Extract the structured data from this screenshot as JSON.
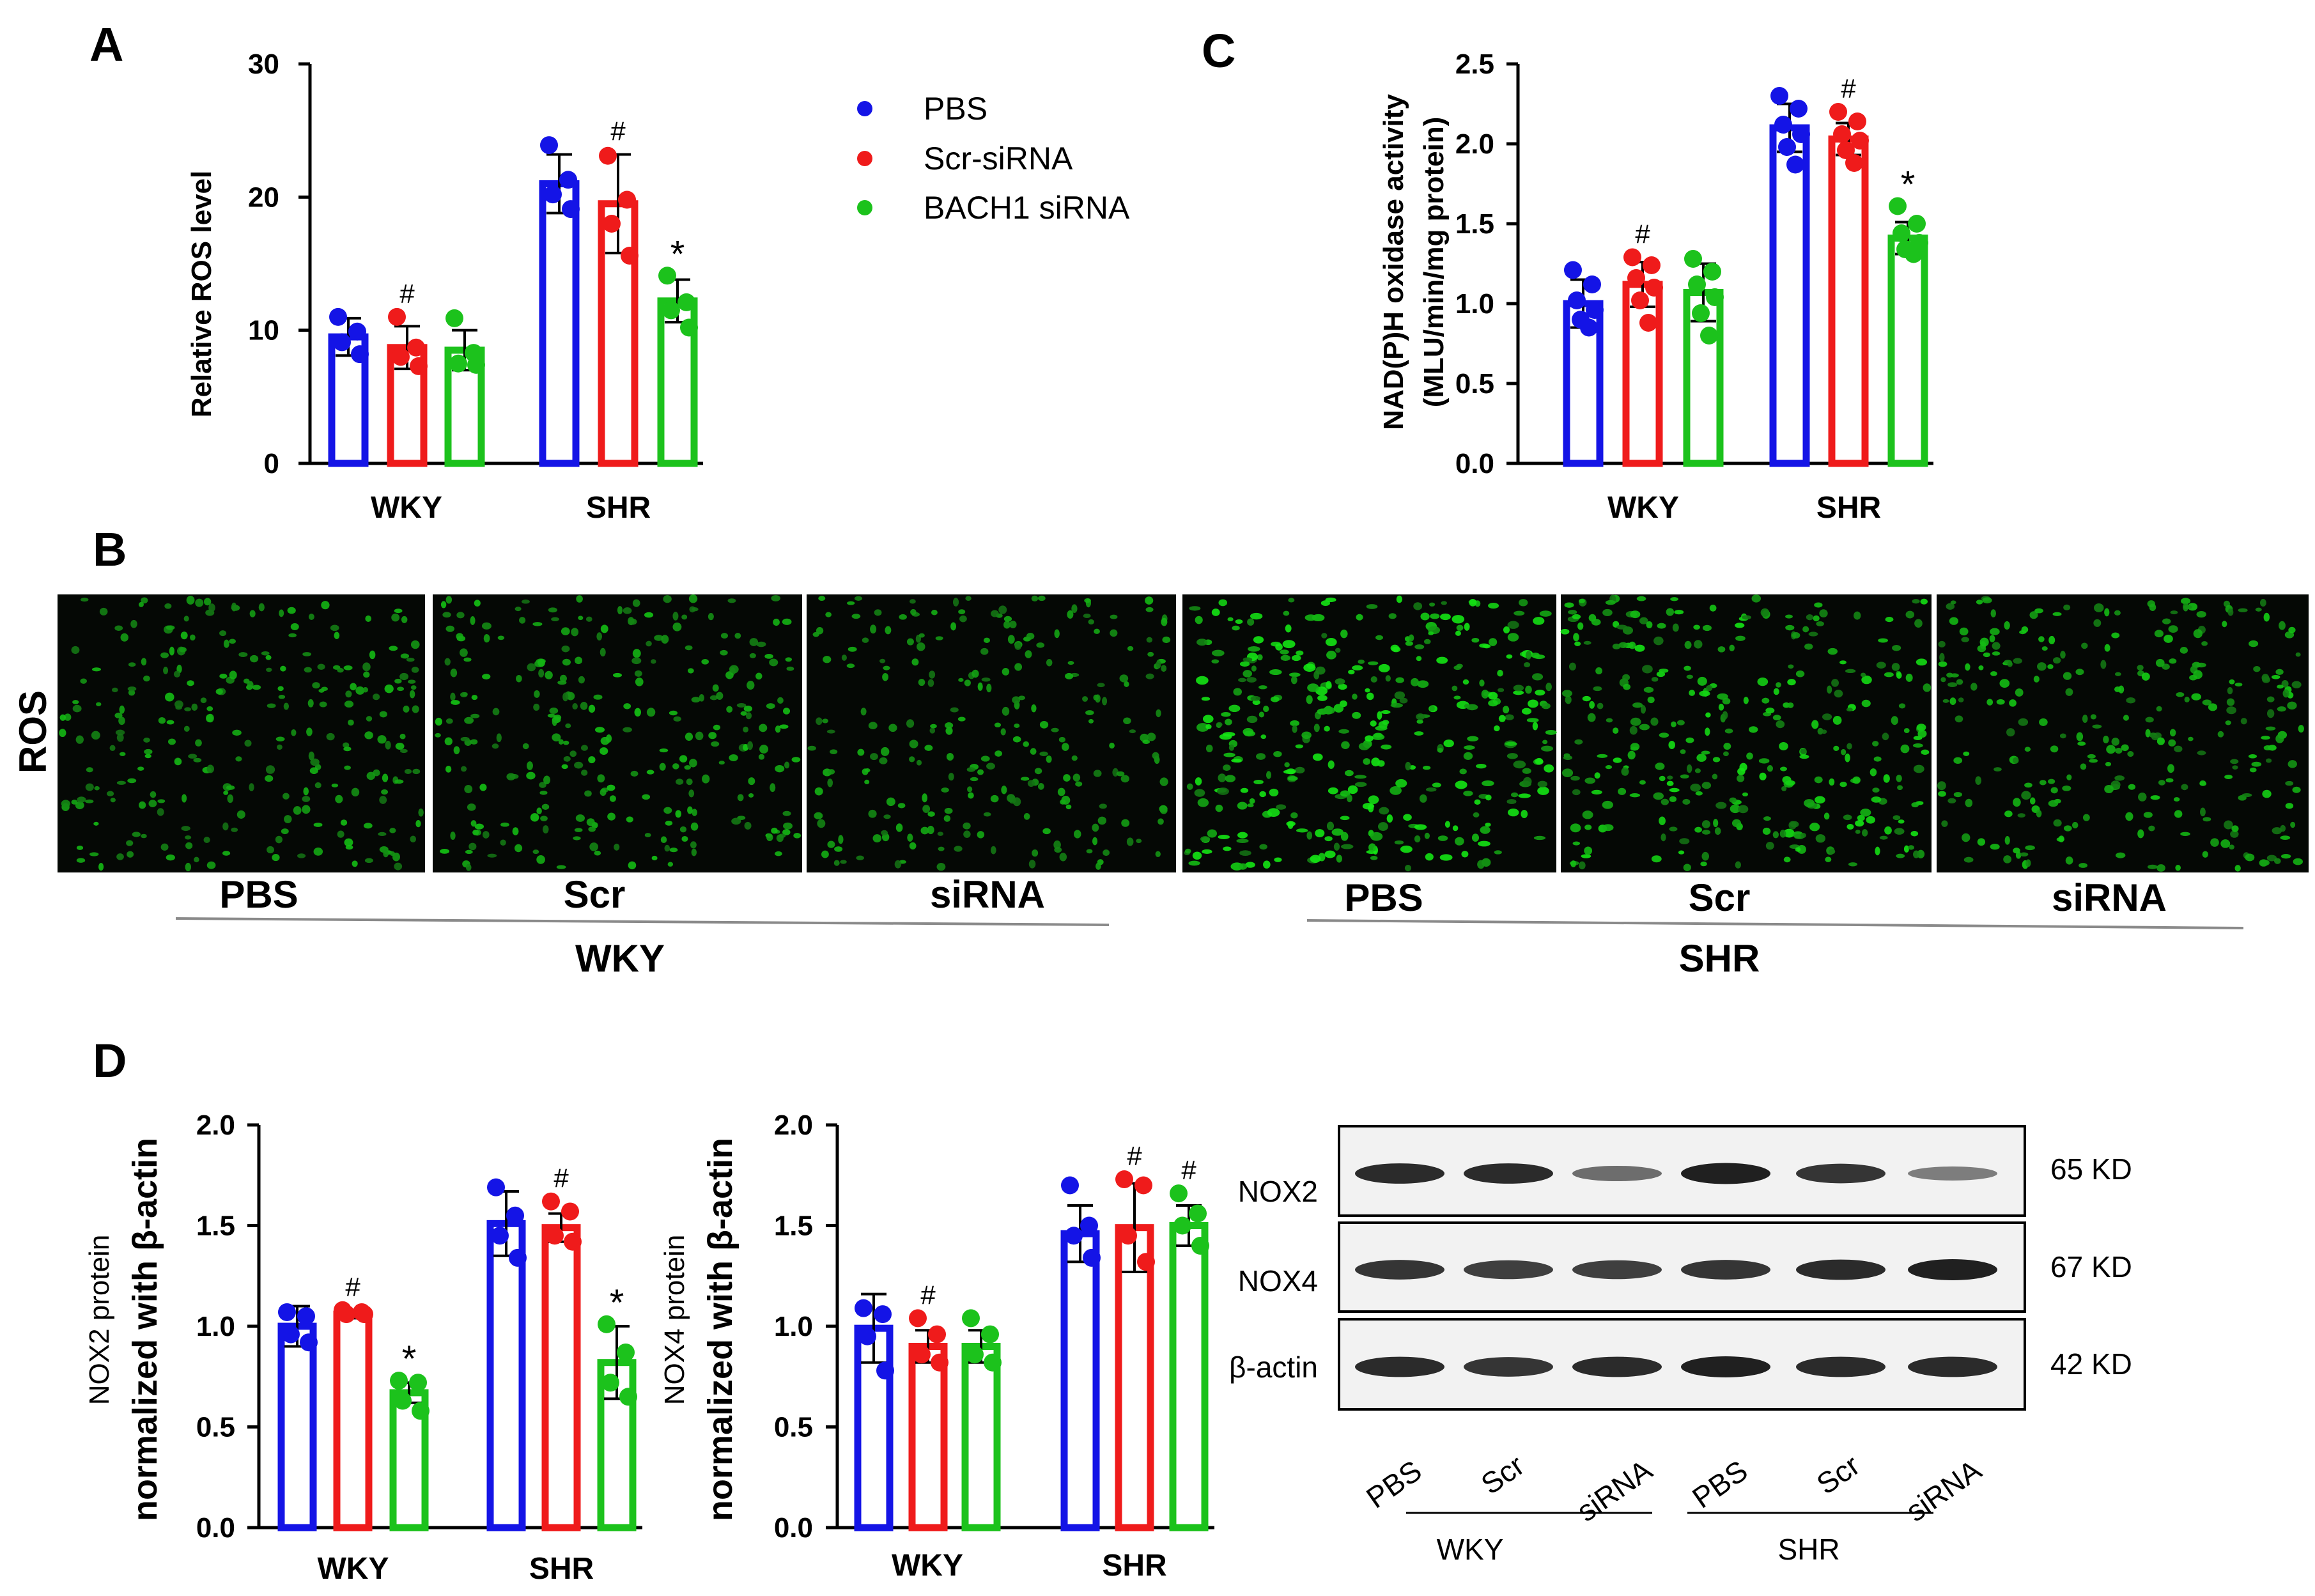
{
  "colors": {
    "PBS": "#1414e6",
    "Scr-siRNA": "#ef1b1b",
    "BACH1 siRNA": "#1cc21c"
  },
  "legend": [
    "PBS",
    "Scr-siRNA",
    "BACH1 siRNA"
  ],
  "panels": {
    "A": "A",
    "B": "B",
    "C": "C",
    "D": "D"
  },
  "chart_data": [
    {
      "id": "A",
      "type": "bar",
      "ylabel": "Relative ROS level",
      "ylim": [
        0,
        30
      ],
      "yticks": [
        "0",
        "10",
        "20",
        "30"
      ],
      "categories": [
        "WKY",
        "SHR"
      ],
      "series": [
        {
          "name": "PBS",
          "values": [
            9.5,
            21.0
          ],
          "errors": [
            1.4,
            2.2
          ],
          "points": [
            [
              11.0,
              9.9,
              9.1,
              8.2
            ],
            [
              23.9,
              21.3,
              20.2,
              19.1
            ]
          ]
        },
        {
          "name": "Scr-siRNA",
          "values": [
            8.7,
            19.5
          ],
          "errors": [
            1.6,
            3.7
          ],
          "points": [
            [
              11.0,
              8.7,
              8.0,
              7.3
            ],
            [
              23.1,
              19.8,
              18.0,
              15.6
            ]
          ]
        },
        {
          "name": "BACH1 siRNA",
          "values": [
            8.5,
            12.2
          ],
          "errors": [
            1.5,
            1.6
          ],
          "points": [
            [
              10.9,
              8.3,
              7.5,
              7.4
            ],
            [
              14.1,
              12.1,
              11.5,
              10.2
            ]
          ]
        }
      ],
      "significance": [
        [
          "",
          ""
        ],
        [
          "#",
          "#"
        ],
        [
          "",
          "*"
        ]
      ]
    },
    {
      "id": "C",
      "type": "bar",
      "ylabel": "NAD(P)H oxidase activity (MLU/min/mg protein)",
      "ylabel_lines": [
        "NAD(P)H oxidase activity",
        "(MLU/min/mg protein)"
      ],
      "ylim": [
        0,
        2.5
      ],
      "yticks": [
        "0.0",
        "0.5",
        "1.0",
        "1.5",
        "2.0",
        "2.5"
      ],
      "categories": [
        "WKY",
        "SHR"
      ],
      "series": [
        {
          "name": "PBS",
          "values": [
            1.0,
            2.1
          ],
          "errors": [
            0.15,
            0.15
          ],
          "points": [
            [
              1.21,
              1.12,
              1.02,
              0.96,
              0.9,
              0.85
            ],
            [
              2.3,
              2.22,
              2.12,
              2.06,
              1.98,
              1.87
            ]
          ]
        },
        {
          "name": "Scr-siRNA",
          "values": [
            1.12,
            2.03
          ],
          "errors": [
            0.14,
            0.1
          ],
          "points": [
            [
              1.29,
              1.24,
              1.16,
              1.1,
              1.02,
              0.88
            ],
            [
              2.2,
              2.14,
              2.06,
              2.02,
              1.96,
              1.88
            ]
          ]
        },
        {
          "name": "BACH1 siRNA",
          "values": [
            1.07,
            1.41
          ],
          "errors": [
            0.18,
            0.1
          ],
          "points": [
            [
              1.28,
              1.2,
              1.12,
              1.04,
              0.94,
              0.8
            ],
            [
              1.61,
              1.5,
              1.44,
              1.38,
              1.34,
              1.31
            ]
          ]
        }
      ],
      "significance": [
        [
          "",
          ""
        ],
        [
          "#",
          "#"
        ],
        [
          "",
          "*"
        ]
      ]
    },
    {
      "id": "D-NOX2",
      "type": "bar",
      "ylabel_lines": [
        "NOX2 protein",
        "normalized with β-actin"
      ],
      "ylim": [
        0,
        2.0
      ],
      "yticks": [
        "0.0",
        "0.5",
        "1.0",
        "1.5",
        "2.0"
      ],
      "categories": [
        "WKY",
        "SHR"
      ],
      "series": [
        {
          "name": "PBS",
          "values": [
            1.0,
            1.51
          ],
          "errors": [
            0.1,
            0.16
          ],
          "points": [
            [
              1.07,
              1.05,
              0.96,
              0.92
            ],
            [
              1.69,
              1.55,
              1.45,
              1.34
            ]
          ]
        },
        {
          "name": "Scr-siRNA",
          "values": [
            1.06,
            1.49
          ],
          "errors": [
            0.02,
            0.07
          ],
          "points": [
            [
              1.08,
              1.07,
              1.06,
              1.06
            ],
            [
              1.62,
              1.57,
              1.45,
              1.42
            ]
          ]
        },
        {
          "name": "BACH1 siRNA",
          "values": [
            0.67,
            0.82
          ],
          "errors": [
            0.05,
            0.18
          ],
          "points": [
            [
              0.73,
              0.72,
              0.63,
              0.58
            ],
            [
              1.01,
              0.87,
              0.72,
              0.65
            ]
          ]
        }
      ],
      "significance": [
        [
          "",
          ""
        ],
        [
          "#",
          "#"
        ],
        [
          "*",
          "*"
        ]
      ]
    },
    {
      "id": "D-NOX4",
      "type": "bar",
      "ylabel_lines": [
        "NOX4 protein",
        "normalized with β-actin"
      ],
      "ylim": [
        0,
        2.0
      ],
      "yticks": [
        "0.0",
        "0.5",
        "1.0",
        "1.5",
        "2.0"
      ],
      "categories": [
        "WKY",
        "SHR"
      ],
      "series": [
        {
          "name": "PBS",
          "values": [
            0.99,
            1.46
          ],
          "errors": [
            0.17,
            0.14
          ],
          "points": [
            [
              1.09,
              1.06,
              0.95,
              0.78
            ],
            [
              1.7,
              1.5,
              1.45,
              1.34
            ]
          ]
        },
        {
          "name": "Scr-siRNA",
          "values": [
            0.9,
            1.49
          ],
          "errors": [
            0.08,
            0.22
          ],
          "points": [
            [
              1.04,
              0.96,
              0.86,
              0.82
            ],
            [
              1.73,
              1.7,
              1.45,
              1.32
            ]
          ]
        },
        {
          "name": "BACH1 siRNA",
          "values": [
            0.9,
            1.5
          ],
          "errors": [
            0.08,
            0.1
          ],
          "points": [
            [
              1.04,
              0.96,
              0.86,
              0.82
            ],
            [
              1.66,
              1.56,
              1.5,
              1.4
            ]
          ]
        }
      ],
      "significance": [
        [
          "",
          ""
        ],
        [
          "#",
          "#"
        ],
        [
          "",
          "#"
        ]
      ]
    }
  ],
  "microscopy": {
    "row_label": "ROS",
    "lanes": [
      "PBS",
      "Scr",
      "siRNA",
      "PBS",
      "Scr",
      "siRNA"
    ],
    "groups": [
      "WKY",
      "SHR"
    ],
    "intensity": [
      0.55,
      0.6,
      0.5,
      1.0,
      0.8,
      0.65
    ]
  },
  "western": {
    "proteins": [
      "NOX2",
      "NOX4",
      "β-actin"
    ],
    "sizes": [
      "65 KD",
      "67 KD",
      "42 KD"
    ],
    "lanes": [
      "PBS",
      "Scr",
      "siRNA",
      "PBS",
      "Scr",
      "siRNA"
    ],
    "groups": [
      "WKY",
      "SHR"
    ],
    "band_strength": [
      [
        0.9,
        0.9,
        0.55,
        0.95,
        0.85,
        0.45
      ],
      [
        0.85,
        0.8,
        0.8,
        0.85,
        0.9,
        0.95
      ],
      [
        0.9,
        0.85,
        0.9,
        0.95,
        0.9,
        0.9
      ]
    ]
  }
}
